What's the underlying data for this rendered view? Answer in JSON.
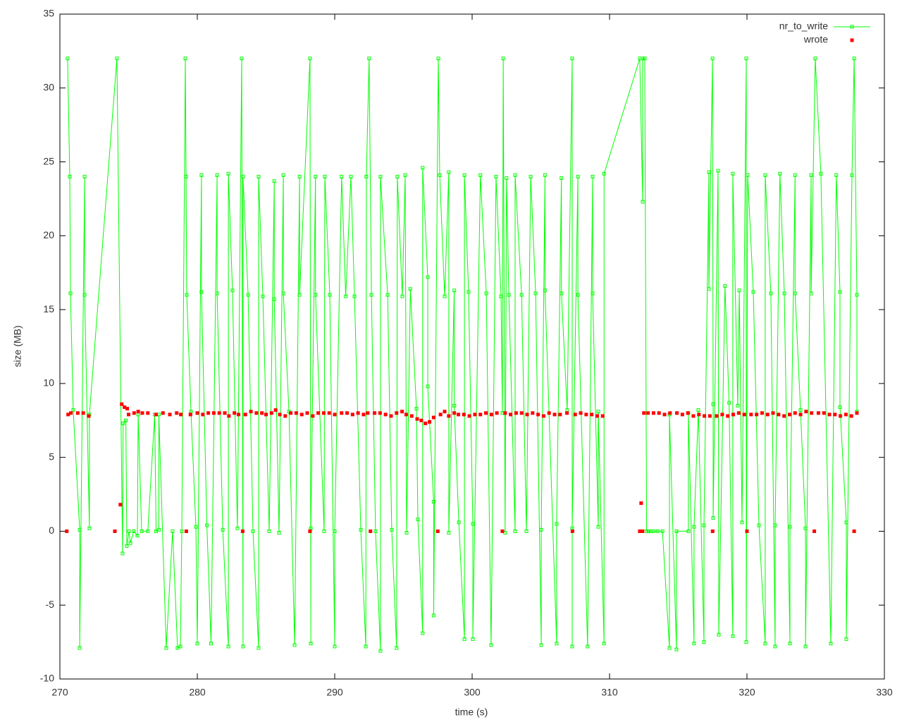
{
  "chart_data": {
    "type": "line",
    "xlabel": "time (s)",
    "ylabel": "size (MB)",
    "xlim": [
      270,
      330
    ],
    "xticks": [
      270,
      280,
      290,
      300,
      310,
      320,
      330
    ],
    "ylim": [
      -10,
      35
    ],
    "yticks": [
      -10,
      -5,
      0,
      5,
      10,
      15,
      20,
      25,
      30,
      35
    ],
    "grid": false,
    "legend": "top-right",
    "series": [
      {
        "name": "nr_to_write",
        "color": "#00ff00",
        "style": "linespoints",
        "x": [
          270.56,
          270.72,
          270.77,
          270.97,
          271.44,
          271.44,
          271.8,
          271.8,
          272.15,
          272.15,
          274.15,
          274.56,
          274.6,
          274.8,
          274.87,
          275.03,
          275.13,
          275.38,
          275.64,
          275.7,
          275.95,
          276.4,
          276.9,
          277.0,
          277.2,
          277.2,
          277.74,
          278.2,
          278.56,
          278.77,
          278.87,
          279.13,
          279.18,
          279.23,
          279.54,
          279.9,
          280.0,
          280.3,
          280.3,
          280.7,
          281.0,
          281.44,
          281.44,
          281.85,
          282.26,
          282.26,
          282.56,
          282.92,
          283.23,
          283.33,
          283.33,
          283.7,
          284.05,
          284.46,
          284.46,
          284.77,
          285.23,
          285.6,
          285.6,
          285.95,
          286.26,
          286.26,
          286.67,
          287.08,
          287.44,
          287.44,
          288.2,
          288.26,
          288.26,
          288.6,
          288.6,
          289.23,
          289.28,
          289.64,
          290.0,
          290.0,
          290.5,
          290.8,
          291.18,
          291.44,
          291.9,
          292.26,
          292.3,
          292.5,
          292.67,
          292.97,
          293.33,
          293.33,
          293.85,
          294.15,
          294.5,
          294.56,
          294.92,
          295.13,
          295.23,
          295.5,
          295.95,
          296.05,
          296.4,
          296.4,
          296.77,
          296.77,
          297.2,
          297.2,
          297.54,
          297.64,
          298.0,
          298.3,
          298.3,
          298.7,
          298.7,
          299.03,
          299.44,
          299.44,
          299.74,
          300.05,
          300.05,
          300.6,
          301.03,
          301.38,
          301.74,
          302.1,
          302.2,
          302.26,
          302.4,
          302.5,
          302.67,
          303.13,
          303.13,
          303.6,
          303.95,
          304.26,
          304.62,
          305.03,
          305.03,
          305.3,
          305.3,
          306.15,
          306.15,
          306.5,
          306.5,
          306.92,
          307.28,
          307.28,
          307.28,
          307.7,
          307.7,
          308.4,
          308.77,
          308.77,
          309.18,
          309.18,
          309.6,
          309.6,
          312.2,
          312.41,
          312.41,
          312.56,
          312.7,
          312.85,
          313.0,
          313.2,
          313.5,
          313.85,
          314.36,
          314.36,
          314.87,
          314.87,
          315.74,
          315.74,
          316.15,
          316.15,
          316.46,
          316.87,
          316.87,
          317.23,
          317.23,
          317.49,
          317.54,
          317.54,
          317.9,
          317.95,
          318.4,
          318.7,
          318.97,
          318.97,
          319.33,
          319.44,
          319.64,
          319.95,
          319.95,
          320.05,
          320.46,
          320.87,
          321.33,
          321.33,
          321.74,
          322.05,
          322.05,
          322.4,
          322.72,
          323.13,
          323.13,
          323.5,
          323.5,
          323.9,
          324.26,
          324.26,
          324.67,
          324.67,
          324.97,
          325.38,
          326.1,
          326.5,
          326.77,
          326.77,
          327.23,
          327.23,
          327.64,
          327.8,
          328.0,
          328.0
        ],
        "values": [
          32,
          24,
          16.1,
          8.2,
          0.1,
          -7.9,
          24,
          16,
          0.2,
          7.9,
          32,
          -1.5,
          7.3,
          7.5,
          -1,
          0,
          -0.8,
          0,
          -0.3,
          7.9,
          0,
          0,
          7.9,
          0,
          0.1,
          7.9,
          -7.9,
          0,
          -7.9,
          -7.8,
          0,
          32,
          24,
          16,
          8.1,
          0.3,
          -7.6,
          24.1,
          16.2,
          0.4,
          -7.6,
          24.1,
          16.1,
          0.1,
          -7.8,
          24.2,
          16.3,
          0.2,
          32,
          -7.8,
          24,
          16,
          0,
          -7.9,
          24,
          15.9,
          0,
          23.7,
          15.7,
          -0.1,
          24.1,
          16.1,
          8.1,
          -7.7,
          24,
          16,
          32,
          -7.6,
          0.2,
          24,
          16,
          0,
          24,
          16,
          -7.8,
          0,
          24,
          15.9,
          24,
          15.9,
          0.1,
          -7.8,
          24,
          32,
          16,
          0,
          -8.1,
          24,
          16,
          0.1,
          -7.9,
          24,
          15.9,
          24.1,
          -0.1,
          16.4,
          8.3,
          0.8,
          -6.9,
          24.6,
          17.2,
          9.8,
          2.0,
          -5.7,
          32,
          24.1,
          15.9,
          24.3,
          -0.1,
          16.3,
          8.5,
          0.6,
          -7.3,
          24.1,
          16.2,
          0.5,
          -7.3,
          24.1,
          16.1,
          -7.7,
          24,
          15.9,
          8,
          32,
          -0.1,
          23.9,
          16,
          0,
          24.1,
          16,
          0,
          24,
          16.1,
          -7.7,
          0.1,
          24.1,
          16.3,
          -7.6,
          0.5,
          23.9,
          16.1,
          8.2,
          32,
          -7.8,
          0.2,
          24,
          16,
          -7.8,
          24,
          16.1,
          0.3,
          8.1,
          -7.6,
          24.2,
          32,
          22.3,
          32,
          32,
          0,
          0,
          0,
          0,
          0,
          0,
          -7.9,
          7.9,
          -8,
          0,
          0,
          8,
          -7.6,
          0.3,
          8.2,
          -7.5,
          0.4,
          24.3,
          16.4,
          32,
          8.6,
          0.9,
          24.4,
          -7,
          16.6,
          8.7,
          -7.1,
          24.2,
          8.5,
          16.3,
          0.6,
          32,
          -7.5,
          24.1,
          16.2,
          0.4,
          -7.6,
          24.1,
          16.1,
          -7.8,
          0.4,
          24.2,
          16.1,
          -7.6,
          0.3,
          24.1,
          16.1,
          8.2,
          0.2,
          -7.8,
          24.1,
          16.1,
          32,
          24.2,
          -7.6,
          24.1,
          16.2,
          8.4,
          0.6,
          -7.3,
          24.1,
          32,
          16,
          8.1
        ]
      },
      {
        "name": "wrote",
        "color": "#ff0000",
        "style": "points",
        "x": [
          270.5,
          270.6,
          270.8,
          271.3,
          271.7,
          272.1,
          274.0,
          274.4,
          274.5,
          274.7,
          274.9,
          275.0,
          275.4,
          275.7,
          276.0,
          276.4,
          277.0,
          277.5,
          278.0,
          278.5,
          278.8,
          279.2,
          279.5,
          280.0,
          280.4,
          280.8,
          281.2,
          281.6,
          282.0,
          282.3,
          282.7,
          283.0,
          283.3,
          283.5,
          283.9,
          284.3,
          284.7,
          285.0,
          285.4,
          285.7,
          286.0,
          286.4,
          286.8,
          287.2,
          287.6,
          288.0,
          288.2,
          288.4,
          288.8,
          289.2,
          289.6,
          290.0,
          290.5,
          290.9,
          291.3,
          291.7,
          292.1,
          292.4,
          292.6,
          292.9,
          293.3,
          293.7,
          294.1,
          294.5,
          294.9,
          295.2,
          295.6,
          296.0,
          296.3,
          296.6,
          296.9,
          297.2,
          297.5,
          297.7,
          298.0,
          298.3,
          298.7,
          299.0,
          299.4,
          299.8,
          300.2,
          300.6,
          301.0,
          301.4,
          301.8,
          302.2,
          302.4,
          302.8,
          303.2,
          303.6,
          304.0,
          304.4,
          304.8,
          305.2,
          305.6,
          306.0,
          306.4,
          306.9,
          307.3,
          307.5,
          307.9,
          308.3,
          308.7,
          309.1,
          309.5,
          312.2,
          312.3,
          312.4,
          312.5,
          312.8,
          313.2,
          313.6,
          314.0,
          314.4,
          314.9,
          315.3,
          315.7,
          316.1,
          316.5,
          316.9,
          317.3,
          317.5,
          317.8,
          318.2,
          318.6,
          319.0,
          319.4,
          319.8,
          320.0,
          320.3,
          320.7,
          321.1,
          321.5,
          321.9,
          322.3,
          322.7,
          323.1,
          323.5,
          323.9,
          324.3,
          324.7,
          324.9,
          325.2,
          325.6,
          326.0,
          326.4,
          326.8,
          327.2,
          327.6,
          327.8,
          328.0
        ],
        "values": [
          0,
          7.9,
          8,
          8,
          8,
          7.8,
          0,
          1.8,
          8.6,
          8.4,
          8.3,
          7.9,
          8,
          8.1,
          8,
          8,
          7.9,
          8,
          7.9,
          8,
          7.9,
          0,
          7.9,
          8,
          7.9,
          8,
          8,
          8,
          8,
          7.8,
          8,
          7.9,
          0,
          7.9,
          8.1,
          8,
          8,
          7.9,
          8,
          8.2,
          7.9,
          7.8,
          8,
          8,
          7.9,
          8,
          0,
          7.8,
          8,
          8,
          8,
          7.9,
          8,
          8,
          7.9,
          8,
          7.9,
          8,
          0,
          8,
          8,
          7.9,
          7.8,
          8,
          8.1,
          7.9,
          7.8,
          7.6,
          7.5,
          7.3,
          7.4,
          7.7,
          0,
          7.9,
          8.1,
          7.8,
          8,
          7.9,
          7.9,
          7.8,
          7.9,
          7.9,
          8,
          7.9,
          8,
          0,
          8,
          7.9,
          8,
          8,
          7.9,
          8,
          7.9,
          7.8,
          8,
          7.9,
          7.9,
          8,
          0,
          7.9,
          8,
          7.9,
          7.9,
          7.8,
          7.8,
          0,
          1.9,
          0,
          8,
          8,
          8,
          8,
          7.9,
          8,
          8,
          7.9,
          8,
          7.8,
          7.9,
          7.8,
          7.8,
          0,
          7.8,
          7.9,
          7.8,
          7.9,
          8,
          7.9,
          0,
          7.9,
          7.9,
          8,
          7.9,
          8,
          7.9,
          7.8,
          7.9,
          8,
          7.9,
          8.1,
          8,
          0,
          8,
          8,
          7.9,
          7.9,
          7.8,
          7.9,
          7.8,
          0,
          8
        ]
      }
    ]
  }
}
